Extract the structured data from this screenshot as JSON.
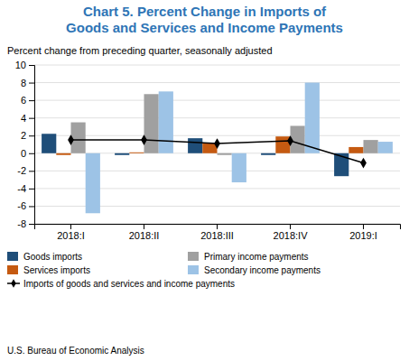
{
  "chart_data": {
    "type": "bar",
    "title": "Chart 5. Percent Change in Imports of\nGoods and Services and Income Payments",
    "subtitle": "Percent change from preceding quarter, seasonally adjusted",
    "annotations": [
      "U.S. Bureau of Economic Analysis"
    ],
    "categories": [
      "2018:I",
      "2018:II",
      "2018:III",
      "2018:IV",
      "2019:I"
    ],
    "series": [
      {
        "name": "Goods imports",
        "type": "bar",
        "color": "#1f4e79",
        "values": [
          2.2,
          -0.2,
          1.7,
          -0.2,
          -2.6
        ]
      },
      {
        "name": "Services imports",
        "type": "bar",
        "color": "#c55a11",
        "values": [
          -0.2,
          0.1,
          1.2,
          1.9,
          0.7
        ]
      },
      {
        "name": "Primary income payments",
        "type": "bar",
        "color": "#a0a0a0",
        "values": [
          3.5,
          6.7,
          -0.2,
          3.1,
          1.5
        ]
      },
      {
        "name": "Secondary income payments",
        "type": "bar",
        "color": "#9dc3e6",
        "values": [
          -6.8,
          7.0,
          -3.3,
          8.0,
          1.3
        ]
      },
      {
        "name": "Imports of goods and services and income payments",
        "type": "line",
        "color": "#000000",
        "marker": "diamond",
        "values": [
          1.5,
          1.5,
          1.1,
          1.4,
          -1.1
        ]
      }
    ],
    "ylim": [
      -8,
      10
    ],
    "yticks": [
      -8,
      -6,
      -4,
      -2,
      0,
      2,
      4,
      6,
      8,
      10
    ],
    "grid": true,
    "legend": "bottom"
  }
}
